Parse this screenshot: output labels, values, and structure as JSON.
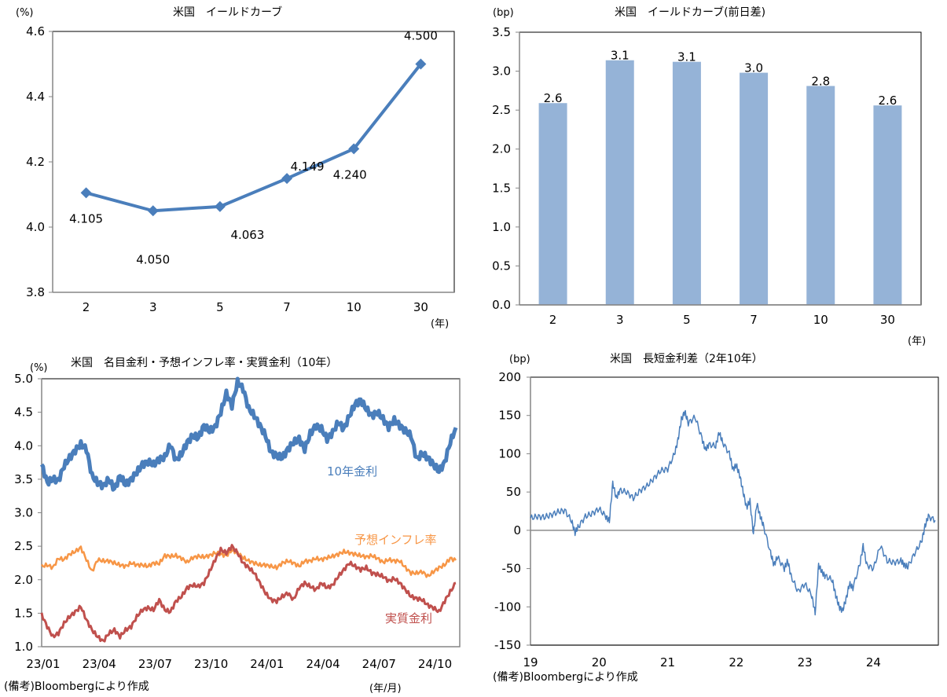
{
  "chart_data": [
    {
      "type": "line",
      "title": "米国　イールドカーブ",
      "ylabel": "(%)",
      "xlabel": "(年)",
      "categories": [
        "2",
        "3",
        "5",
        "7",
        "10",
        "30"
      ],
      "values": [
        4.105,
        4.05,
        4.063,
        4.149,
        4.24,
        4.5
      ],
      "data_labels": [
        "4.105",
        "4.050",
        "4.063",
        "4.149",
        "4.240",
        "4.500"
      ],
      "ylim": [
        3.8,
        4.6
      ],
      "yticks": [
        3.8,
        4.0,
        4.2,
        4.4,
        4.6
      ],
      "ytick_labels": [
        "3.8",
        "4.0",
        "4.2",
        "4.4",
        "4.6"
      ],
      "color": "#4a7ebb",
      "marker": "diamond",
      "grid": false
    },
    {
      "type": "bar",
      "title": "米国　イールドカーブ(前日差)",
      "ylabel": "(bp)",
      "xlabel": "(年)",
      "categories": [
        "2",
        "3",
        "5",
        "7",
        "10",
        "30"
      ],
      "values": [
        2.59,
        3.14,
        3.12,
        2.98,
        2.81,
        2.56
      ],
      "data_labels": [
        "2.6",
        "3.1",
        "3.1",
        "3.0",
        "2.8",
        "2.6"
      ],
      "ylim": [
        0.0,
        3.5
      ],
      "yticks": [
        0.0,
        0.5,
        1.0,
        1.5,
        2.0,
        2.5,
        3.0,
        3.5
      ],
      "ytick_labels": [
        "0.0",
        "0.5",
        "1.0",
        "1.5",
        "2.0",
        "2.5",
        "3.0",
        "3.5"
      ],
      "color": "#95b3d7",
      "grid": false
    },
    {
      "type": "line",
      "title": "米国　名目金利・予想インフレ率・実質金利（10年）",
      "ylabel": "(%)",
      "xlabel": "(年/月)",
      "note": "(備考)Bloombergにより作成",
      "x_ticks": [
        "23/01",
        "23/04",
        "23/07",
        "23/10",
        "24/01",
        "24/04",
        "24/07",
        "24/10"
      ],
      "x_range_months": [
        0,
        22.2
      ],
      "ylim": [
        1.0,
        5.0
      ],
      "yticks": [
        1.0,
        1.5,
        2.0,
        2.5,
        3.0,
        3.5,
        4.0,
        4.5,
        5.0
      ],
      "ytick_labels": [
        "1.0",
        "1.5",
        "2.0",
        "2.5",
        "3.0",
        "3.5",
        "4.0",
        "4.5",
        "5.0"
      ],
      "x_months": [
        0,
        0.3,
        0.6,
        0.9,
        1.2,
        1.5,
        1.8,
        2.1,
        2.4,
        2.7,
        3.0,
        3.3,
        3.6,
        3.9,
        4.2,
        4.5,
        4.8,
        5.1,
        5.4,
        5.7,
        6.0,
        6.3,
        6.6,
        6.9,
        7.2,
        7.5,
        7.8,
        8.1,
        8.4,
        8.7,
        9.0,
        9.3,
        9.6,
        9.9,
        10.2,
        10.5,
        10.8,
        11.1,
        11.4,
        11.7,
        12.0,
        12.3,
        12.6,
        12.9,
        13.2,
        13.5,
        13.8,
        14.1,
        14.4,
        14.7,
        15.0,
        15.3,
        15.6,
        15.9,
        16.2,
        16.5,
        16.8,
        17.1,
        17.4,
        17.7,
        18.0,
        18.3,
        18.6,
        18.9,
        19.2,
        19.5,
        19.8,
        20.1,
        20.4,
        20.7,
        21.0,
        21.3,
        21.6,
        21.9,
        22.2
      ],
      "series": [
        {
          "name": "10年金利",
          "color": "#4a7ebb",
          "values": [
            3.72,
            3.45,
            3.5,
            3.48,
            3.7,
            3.82,
            3.93,
            4.02,
            3.95,
            3.55,
            3.45,
            3.4,
            3.5,
            3.35,
            3.55,
            3.42,
            3.5,
            3.6,
            3.72,
            3.76,
            3.72,
            3.8,
            3.83,
            4.02,
            3.78,
            3.88,
            4.05,
            4.15,
            4.12,
            4.3,
            4.22,
            4.28,
            4.5,
            4.78,
            4.6,
            4.95,
            4.85,
            4.55,
            4.45,
            4.3,
            4.15,
            3.9,
            3.85,
            3.82,
            3.95,
            4.05,
            4.1,
            3.95,
            4.18,
            4.3,
            4.25,
            4.1,
            4.2,
            4.35,
            4.25,
            4.45,
            4.62,
            4.68,
            4.55,
            4.45,
            4.5,
            4.4,
            4.28,
            4.38,
            4.3,
            4.22,
            4.15,
            3.8,
            3.88,
            3.82,
            3.72,
            3.62,
            3.75,
            4.05,
            4.27
          ]
        },
        {
          "name": "予想インフレ率",
          "color": "#f79646",
          "values": [
            2.2,
            2.22,
            2.18,
            2.32,
            2.3,
            2.38,
            2.42,
            2.48,
            2.3,
            2.12,
            2.3,
            2.28,
            2.28,
            2.25,
            2.22,
            2.2,
            2.25,
            2.22,
            2.22,
            2.2,
            2.25,
            2.24,
            2.36,
            2.35,
            2.36,
            2.32,
            2.26,
            2.33,
            2.35,
            2.34,
            2.36,
            2.4,
            2.38,
            2.36,
            2.44,
            2.4,
            2.33,
            2.28,
            2.25,
            2.22,
            2.22,
            2.2,
            2.18,
            2.25,
            2.28,
            2.25,
            2.2,
            2.28,
            2.28,
            2.32,
            2.3,
            2.33,
            2.35,
            2.38,
            2.42,
            2.4,
            2.38,
            2.36,
            2.34,
            2.36,
            2.32,
            2.26,
            2.3,
            2.28,
            2.28,
            2.18,
            2.1,
            2.1,
            2.12,
            2.05,
            2.12,
            2.18,
            2.22,
            2.32,
            2.29
          ]
        },
        {
          "name": "実質金利",
          "color": "#c0504d",
          "values": [
            1.48,
            1.3,
            1.15,
            1.2,
            1.35,
            1.45,
            1.52,
            1.6,
            1.4,
            1.25,
            1.15,
            1.08,
            1.2,
            1.25,
            1.15,
            1.25,
            1.3,
            1.45,
            1.55,
            1.58,
            1.55,
            1.7,
            1.55,
            1.52,
            1.68,
            1.75,
            1.88,
            1.92,
            1.9,
            1.95,
            2.12,
            2.3,
            2.45,
            2.4,
            2.5,
            2.4,
            2.25,
            2.18,
            2.1,
            1.95,
            1.8,
            1.7,
            1.68,
            1.75,
            1.8,
            1.7,
            1.88,
            1.95,
            1.9,
            1.85,
            1.95,
            1.88,
            1.92,
            2.05,
            2.15,
            2.25,
            2.2,
            2.15,
            2.18,
            2.1,
            2.08,
            2.05,
            1.98,
            2.02,
            1.95,
            1.85,
            1.75,
            1.72,
            1.7,
            1.62,
            1.58,
            1.52,
            1.68,
            1.82,
            1.95
          ]
        }
      ],
      "series_labels": [
        "10年金利",
        "予想インフレ率",
        "実質金利"
      ],
      "grid": false
    },
    {
      "type": "line",
      "title": "米国　長短金利差（2年10年）",
      "ylabel": "(bp)",
      "note": "(備考)Bloombergにより作成",
      "x_ticks": [
        "19",
        "20",
        "21",
        "22",
        "23",
        "24"
      ],
      "x_range": [
        19,
        24.9
      ],
      "ylim": [
        -150,
        200
      ],
      "yticks": [
        -150,
        -100,
        -50,
        0,
        50,
        100,
        150,
        200
      ],
      "ytick_labels": [
        "-150",
        "-100",
        "-50",
        "0",
        "50",
        "100",
        "150",
        "200"
      ],
      "color": "#4a7ebb",
      "x": [
        19.0,
        19.1,
        19.2,
        19.3,
        19.4,
        19.5,
        19.6,
        19.65,
        19.7,
        19.8,
        19.9,
        20.0,
        20.1,
        20.15,
        20.2,
        20.25,
        20.3,
        20.4,
        20.5,
        20.6,
        20.7,
        20.8,
        20.9,
        21.0,
        21.1,
        21.15,
        21.2,
        21.25,
        21.3,
        21.4,
        21.5,
        21.55,
        21.6,
        21.7,
        21.75,
        21.8,
        21.9,
        21.95,
        22.0,
        22.05,
        22.1,
        22.15,
        22.2,
        22.25,
        22.3,
        22.35,
        22.4,
        22.5,
        22.55,
        22.6,
        22.7,
        22.75,
        22.8,
        22.9,
        23.0,
        23.1,
        23.15,
        23.2,
        23.25,
        23.3,
        23.4,
        23.45,
        23.5,
        23.55,
        23.6,
        23.65,
        23.7,
        23.8,
        23.85,
        23.9,
        24.0,
        24.1,
        24.2,
        24.3,
        24.4,
        24.45,
        24.5,
        24.6,
        24.7,
        24.75,
        24.8,
        24.9
      ],
      "values": [
        16,
        18,
        17,
        20,
        24,
        26,
        12,
        -3,
        5,
        18,
        22,
        28,
        18,
        12,
        62,
        42,
        52,
        50,
        42,
        52,
        58,
        68,
        78,
        80,
        100,
        118,
        145,
        155,
        140,
        148,
        120,
        105,
        112,
        110,
        128,
        115,
        100,
        80,
        85,
        72,
        50,
        30,
        38,
        -5,
        35,
        18,
        5,
        -30,
        -45,
        -35,
        -50,
        -40,
        -60,
        -80,
        -70,
        -85,
        -108,
        -45,
        -55,
        -60,
        -65,
        -85,
        -100,
        -105,
        -90,
        -70,
        -75,
        -45,
        -20,
        -45,
        -50,
        -20,
        -40,
        -42,
        -40,
        -45,
        -48,
        -30,
        -15,
        5,
        18,
        13
      ],
      "zero_line": true,
      "grid": false
    }
  ]
}
